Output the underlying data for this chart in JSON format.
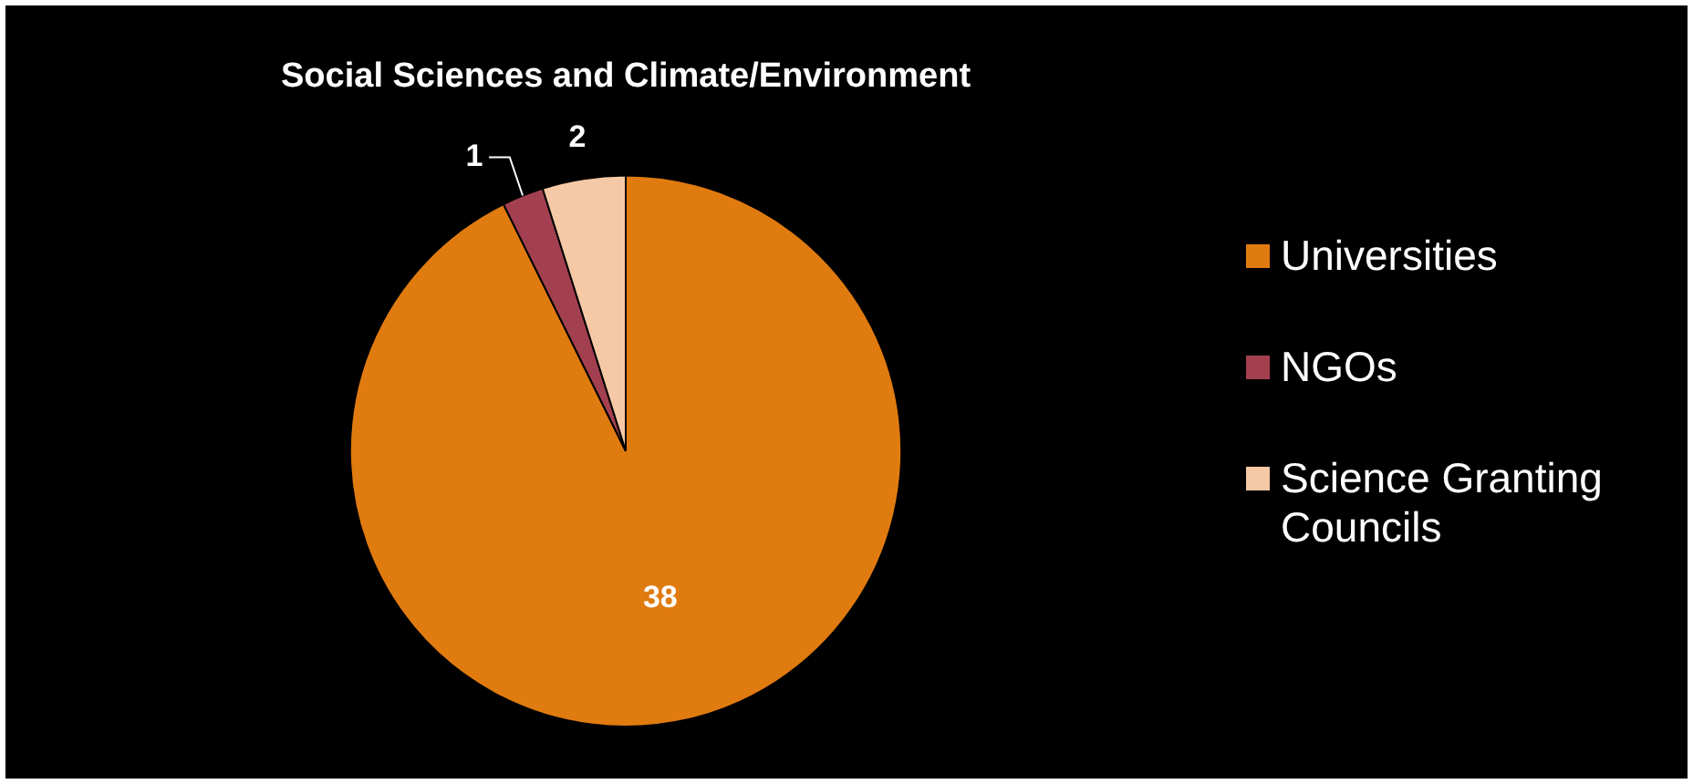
{
  "chart_data": {
    "type": "pie",
    "title": "Social Sciences and Climate/Environment",
    "categories": [
      "Universities",
      "NGOs",
      "Science Granting Councils"
    ],
    "values": [
      38,
      1,
      2
    ],
    "colors": [
      "#e07b10",
      "#a3404f",
      "#f6c9a6"
    ],
    "data_labels": true,
    "legend": "right"
  }
}
